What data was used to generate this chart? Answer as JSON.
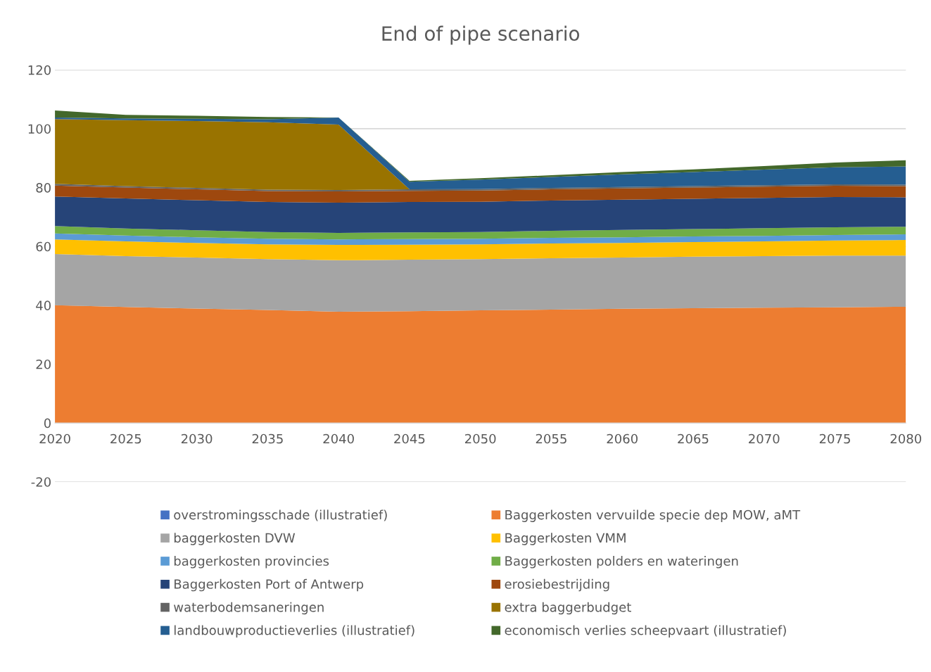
{
  "chart_data": {
    "type": "area",
    "stacked": true,
    "title": "End of pipe scenario",
    "x": [
      2020,
      2025,
      2030,
      2035,
      2040,
      2045,
      2050,
      2055,
      2060,
      2065,
      2070,
      2075,
      2080
    ],
    "xlim": [
      2020,
      2080
    ],
    "xticks": [
      2020,
      2025,
      2030,
      2035,
      2040,
      2045,
      2050,
      2055,
      2060,
      2065,
      2070,
      2075,
      2080
    ],
    "ylim": [
      -20,
      120
    ],
    "yticks": [
      -20,
      0,
      20,
      40,
      60,
      80,
      100,
      120
    ],
    "grid": "y",
    "legend": "bottom",
    "series": [
      {
        "name": "overstromingsschade (illustratief)",
        "color": "#4472c4",
        "values": [
          null,
          null,
          null,
          null,
          null,
          null,
          null,
          null,
          null,
          null,
          null,
          null,
          null
        ]
      },
      {
        "name": "Baggerkosten vervuilde specie dep MOW, aMT",
        "color": "#ed7d31",
        "values": [
          40.0,
          39.4,
          38.9,
          38.4,
          37.8,
          38.0,
          38.3,
          38.5,
          38.8,
          39.0,
          39.2,
          39.3,
          39.5
        ]
      },
      {
        "name": "baggerkosten DVW",
        "color": "#a5a5a5",
        "values": [
          17.4,
          17.3,
          17.3,
          17.3,
          17.5,
          17.5,
          17.4,
          17.5,
          17.4,
          17.5,
          17.5,
          17.6,
          17.4
        ]
      },
      {
        "name": "Baggerkosten VMM",
        "color": "#ffc000",
        "values": [
          5.0,
          5.0,
          5.0,
          5.0,
          5.2,
          5.1,
          5.0,
          5.0,
          5.0,
          5.0,
          5.0,
          5.1,
          5.3
        ]
      },
      {
        "name": "baggerkosten provincies",
        "color": "#5b9bd5",
        "values": [
          2.0,
          2.0,
          1.9,
          1.9,
          1.9,
          1.9,
          1.9,
          1.9,
          1.9,
          1.9,
          1.9,
          1.9,
          1.9
        ]
      },
      {
        "name": "Baggerkosten polders en wateringen",
        "color": "#70ad47",
        "values": [
          2.5,
          2.4,
          2.4,
          2.3,
          2.2,
          2.3,
          2.3,
          2.4,
          2.5,
          2.5,
          2.6,
          2.6,
          2.6
        ]
      },
      {
        "name": "Baggerkosten Port of Antwerp",
        "color": "#264478",
        "values": [
          10.1,
          10.2,
          10.2,
          10.2,
          10.3,
          10.3,
          10.3,
          10.3,
          10.3,
          10.3,
          10.3,
          10.3,
          10.0
        ]
      },
      {
        "name": "erosiebestrijding",
        "color": "#9e480e",
        "values": [
          3.7,
          3.7,
          3.7,
          3.7,
          3.8,
          3.8,
          3.8,
          3.8,
          3.8,
          3.8,
          3.8,
          3.8,
          3.8
        ]
      },
      {
        "name": "waterbodemsaneringen",
        "color": "#636363",
        "values": [
          0.6,
          0.5,
          0.5,
          0.5,
          0.5,
          0.5,
          0.5,
          0.5,
          0.5,
          0.5,
          0.5,
          0.5,
          0.5
        ]
      },
      {
        "name": "extra baggerbudget",
        "color": "#997300",
        "values": [
          22.0,
          22.4,
          22.7,
          22.9,
          22.2,
          0,
          0,
          0,
          0,
          0,
          0,
          0,
          0
        ]
      },
      {
        "name": "landbouwproductieverlies (illustratief)",
        "color": "#255e91",
        "values": [
          0.5,
          0.6,
          0.8,
          1.0,
          2.4,
          2.6,
          3.2,
          3.7,
          4.3,
          4.8,
          5.3,
          5.8,
          6.2
        ]
      },
      {
        "name": "economisch verlies scheepvaart (illustratief)",
        "color": "#43682b",
        "values": [
          2.4,
          1.2,
          1.0,
          0.8,
          0,
          0.3,
          0.5,
          0.6,
          0.8,
          0.9,
          1.2,
          1.6,
          2.1
        ]
      }
    ]
  }
}
